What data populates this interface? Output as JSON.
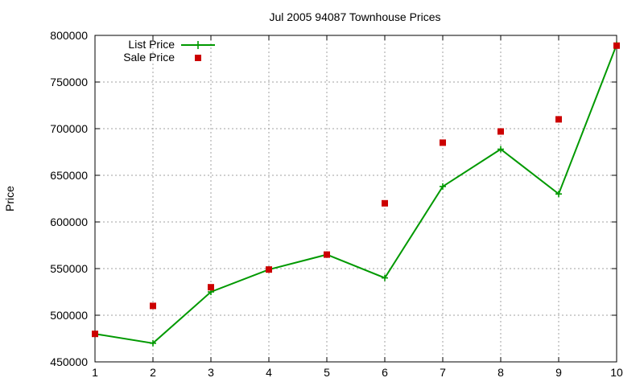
{
  "chart_data": {
    "type": "line",
    "title": "Jul 2005 94087 Townhouse Prices",
    "xlabel": "",
    "ylabel": "Price",
    "x": [
      1,
      2,
      3,
      4,
      5,
      6,
      7,
      8,
      9,
      10
    ],
    "xlim": [
      1,
      10
    ],
    "ylim": [
      450000,
      800000
    ],
    "xticks": [
      "1",
      "2",
      "3",
      "4",
      "5",
      "6",
      "7",
      "8",
      "9",
      "10"
    ],
    "yticks": [
      "450000",
      "500000",
      "550000",
      "600000",
      "650000",
      "700000",
      "750000",
      "800000"
    ],
    "grid": true,
    "legend_position": "top-left",
    "series": [
      {
        "name": "List Price",
        "style": "line-plus",
        "color": "#009900",
        "values": [
          480000,
          470000,
          525000,
          549000,
          565000,
          540000,
          638000,
          678000,
          630000,
          790000
        ]
      },
      {
        "name": "Sale Price",
        "style": "square-points",
        "color": "#cc0000",
        "values": [
          480000,
          510000,
          530000,
          549000,
          565000,
          620000,
          685000,
          697000,
          710000,
          789000
        ]
      }
    ]
  }
}
